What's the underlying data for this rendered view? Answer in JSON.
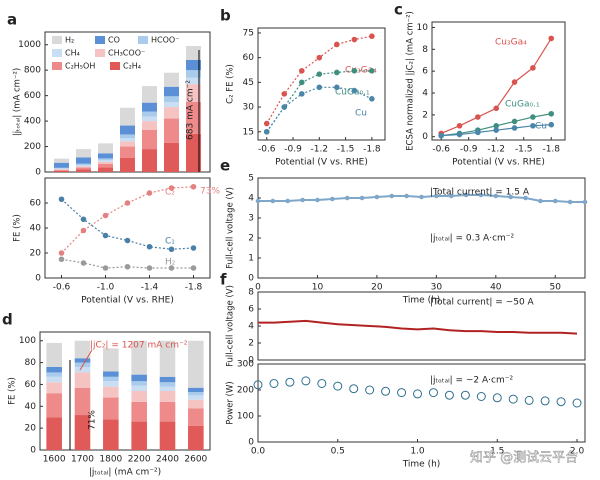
{
  "chart_data": [
    {
      "type": "stacked_bar",
      "label": "a",
      "ylabel": "|jₜₒₜₐₗ| (mA cm⁻²)",
      "x": [
        -0.6,
        -0.8,
        -1.0,
        -1.2,
        -1.4,
        -1.6,
        -1.8
      ],
      "xlim": [
        -0.45,
        -1.95
      ],
      "ylim": [
        0,
        1100
      ],
      "yticks": [
        0,
        200,
        400,
        600,
        800,
        1000
      ],
      "series": [
        {
          "name": "C₂H₄",
          "color": "#e05a5a",
          "values": [
            10,
            20,
            35,
            110,
            180,
            230,
            300
          ]
        },
        {
          "name": "C₂H₅OH",
          "color": "#ef8a8a",
          "values": [
            8,
            15,
            30,
            90,
            150,
            190,
            250
          ]
        },
        {
          "name": "CH₃COO⁻",
          "color": "#f6c3c3",
          "values": [
            4,
            8,
            15,
            40,
            70,
            90,
            140
          ]
        },
        {
          "name": "CH₄",
          "color": "#c9def2",
          "values": [
            6,
            10,
            12,
            25,
            35,
            40,
            50
          ]
        },
        {
          "name": "HCOO⁻",
          "color": "#a9cbec",
          "values": [
            5,
            12,
            15,
            30,
            40,
            45,
            60
          ]
        },
        {
          "name": "CO",
          "color": "#5b8fd6",
          "values": [
            40,
            50,
            40,
            70,
            70,
            75,
            80
          ]
        },
        {
          "name": "H₂",
          "color": "#d9d9d9",
          "values": [
            32,
            65,
            78,
            140,
            130,
            110,
            110
          ]
        }
      ],
      "annotations": [
        "683 mA cm⁻²"
      ]
    },
    {
      "type": "line",
      "ylabel": "FE (%)",
      "xlabel": "Potential (V vs. RHE)",
      "x": [
        -0.6,
        -0.8,
        -1.0,
        -1.2,
        -1.4,
        -1.6,
        -1.8
      ],
      "xlim": [
        -0.45,
        -1.95
      ],
      "xticks": [
        -0.6,
        {
          "value": -1.0,
          "label": "-1.0"
        },
        -1.4,
        -1.8
      ],
      "ylim": [
        0,
        80
      ],
      "yticks": [
        0,
        20,
        40,
        60
      ],
      "series": [
        {
          "name": "C₂",
          "color": "#e58080",
          "style": "dotted",
          "values": [
            20,
            38,
            50,
            60,
            68,
            72,
            73
          ]
        },
        {
          "name": "C₁",
          "color": "#4a7fa8",
          "style": "dotted",
          "values": [
            63,
            47,
            34,
            30,
            25,
            23,
            24
          ]
        },
        {
          "name": "H₂",
          "color": "#9a9a9a",
          "style": "dotted",
          "values": [
            15,
            12,
            8,
            9,
            8,
            8,
            8
          ]
        }
      ],
      "annotations": [
        "73%"
      ]
    },
    {
      "type": "line",
      "label": "b",
      "ylabel": "C₂ FE (%)",
      "xlabel": "Potential (V vs. RHE)",
      "x": [
        -0.6,
        -0.8,
        -1.0,
        -1.2,
        -1.4,
        -1.6,
        -1.8
      ],
      "xlim": [
        -0.5,
        -1.95
      ],
      "xticks": [
        -0.6,
        -0.9,
        -1.2,
        -1.5,
        -1.8
      ],
      "ylim": [
        10,
        78
      ],
      "yticks": [
        15,
        30,
        45,
        60,
        75
      ],
      "series": [
        {
          "name": "Cu₃Ga₄",
          "color": "#d9534f",
          "style": "dotted",
          "values": [
            20,
            38,
            52,
            60,
            68,
            71,
            73
          ]
        },
        {
          "name": "CuGa₀.₁",
          "color": "#3f8f7f",
          "style": "dotted",
          "values": [
            15,
            30,
            45,
            50,
            51,
            52,
            52
          ]
        },
        {
          "name": "Cu",
          "color": "#4a86a8",
          "style": "dotted",
          "values": [
            15,
            30,
            38,
            42,
            42,
            40,
            35
          ]
        }
      ]
    },
    {
      "type": "line",
      "label": "c",
      "ylabel": "ECSA normalized |jC₂| (mA cm⁻²)",
      "xlabel": "Potential (V vs. RHE)",
      "x": [
        -0.6,
        -0.8,
        -1.0,
        -1.2,
        -1.4,
        -1.6,
        -1.8
      ],
      "xlim": [
        -0.5,
        -1.95
      ],
      "xticks": [
        -0.6,
        -0.9,
        -1.2,
        -1.5,
        -1.8
      ],
      "ylim": [
        -0.3,
        10.5
      ],
      "yticks": [
        0,
        2,
        4,
        6,
        8,
        10
      ],
      "series": [
        {
          "name": "Cu₃Ga₄",
          "color": "#d9534f",
          "style": "solid",
          "values": [
            0.3,
            1.0,
            1.8,
            2.6,
            5.0,
            6.3,
            9.0
          ]
        },
        {
          "name": "CuGa₀.₁",
          "color": "#3f8f7f",
          "style": "solid",
          "values": [
            0.1,
            0.3,
            0.6,
            1.0,
            1.4,
            1.8,
            2.1
          ]
        },
        {
          "name": "Cu",
          "color": "#4a86a8",
          "style": "solid",
          "values": [
            0.1,
            0.2,
            0.4,
            0.6,
            0.8,
            1.0,
            1.1
          ]
        }
      ]
    },
    {
      "type": "stacked_bar",
      "label": "d",
      "ylabel": "FE (%)",
      "xlabel": "|jₜₒₜₐₗ| (mA cm⁻²)",
      "categories": [
        "1600",
        "1700",
        "1800",
        "2200",
        "2400",
        "2600"
      ],
      "ylim": [
        0,
        108
      ],
      "yticks": [
        0,
        20,
        40,
        60,
        80,
        100
      ],
      "series": [
        {
          "name": "C₂H₄",
          "color": "#e05a5a",
          "values": [
            30,
            32,
            28,
            26,
            26,
            22
          ]
        },
        {
          "name": "C₂H₅OH",
          "color": "#ef8a8a",
          "values": [
            22,
            25,
            20,
            18,
            18,
            16
          ]
        },
        {
          "name": "CH₃COO⁻",
          "color": "#f6c3c3",
          "values": [
            10,
            14,
            10,
            10,
            10,
            8
          ]
        },
        {
          "name": "CH₄",
          "color": "#c9def2",
          "values": [
            5,
            5,
            5,
            5,
            4,
            4
          ]
        },
        {
          "name": "HCOO⁻",
          "color": "#a9cbec",
          "values": [
            4,
            4,
            4,
            4,
            4,
            3
          ]
        },
        {
          "name": "CO",
          "color": "#5b8fd6",
          "values": [
            5,
            4,
            5,
            6,
            5,
            4
          ]
        },
        {
          "name": "H₂",
          "color": "#d9d9d9",
          "values": [
            22,
            16,
            21,
            31,
            33,
            43
          ]
        }
      ],
      "annotations": [
        "|jC₂| = 1207 mA cm⁻²",
        "71%"
      ]
    },
    {
      "type": "line",
      "label": "e",
      "ylabel": "Full-cell voltage (V)",
      "xlabel": "Time (h)",
      "x": [
        0,
        2.5,
        5,
        7.5,
        10,
        12.5,
        15,
        17.5,
        20,
        22.5,
        25,
        27.5,
        30,
        32.5,
        35,
        37.5,
        40,
        42.5,
        45,
        47.5,
        50,
        52.5,
        55
      ],
      "xlim": [
        0,
        55
      ],
      "xticks": [
        0,
        10,
        20,
        30,
        40,
        50
      ],
      "ylim": [
        0,
        5
      ],
      "yticks": [
        0,
        1,
        2,
        3,
        4,
        5
      ],
      "series": [
        {
          "name": "Voltage",
          "color": "#7fa7c9",
          "style": "solid",
          "values": [
            3.85,
            3.85,
            3.85,
            3.9,
            3.9,
            3.95,
            4.0,
            4.0,
            4.05,
            4.1,
            4.1,
            4.05,
            4.1,
            4.1,
            4.15,
            4.15,
            4.1,
            4.05,
            4.0,
            3.85,
            3.85,
            3.8,
            3.8
          ]
        }
      ],
      "annotations": [
        "|Total current| = 1.5 A",
        "|jₜₒₜₐₗ| = 0.3 A·cm⁻²"
      ]
    },
    {
      "type": "line",
      "label": "f",
      "ylabel": "Full-cell voltage (V)",
      "x": [
        0,
        0.1,
        0.2,
        0.3,
        0.4,
        0.5,
        0.6,
        0.7,
        0.8,
        0.9,
        1.0,
        1.1,
        1.2,
        1.3,
        1.4,
        1.5,
        1.6,
        1.7,
        1.8,
        1.9,
        2.0
      ],
      "xlim": [
        0,
        2.05
      ],
      "ylim": [
        0,
        8
      ],
      "yticks": [
        0,
        2,
        4,
        6,
        8
      ],
      "series": [
        {
          "name": "Voltage",
          "color": "#b22222",
          "style": "solid",
          "values": [
            4.4,
            4.4,
            4.5,
            4.6,
            4.4,
            4.2,
            4.1,
            4.0,
            3.9,
            3.7,
            3.6,
            3.7,
            3.5,
            3.4,
            3.4,
            3.3,
            3.3,
            3.2,
            3.2,
            3.2,
            3.1
          ]
        }
      ],
      "annotations": [
        "|Total current| = ~50 A"
      ]
    },
    {
      "type": "line",
      "ylabel": "Power (W)",
      "xlabel": "Time (h)",
      "x": [
        0,
        0.1,
        0.2,
        0.3,
        0.4,
        0.5,
        0.6,
        0.7,
        0.8,
        0.9,
        1.0,
        1.1,
        1.2,
        1.3,
        1.4,
        1.5,
        1.6,
        1.7,
        1.8,
        1.9,
        2.0
      ],
      "xlim": [
        0,
        2.05
      ],
      "xticks": [
        {
          "value": 0,
          "label": "0.0"
        },
        0.5,
        {
          "value": 1,
          "label": "1.0"
        },
        1.5,
        {
          "value": 2,
          "label": "2.0"
        }
      ],
      "ylim": [
        0,
        300
      ],
      "yticks": [
        0,
        100,
        200,
        300
      ],
      "series": [
        {
          "name": "Power",
          "color": "#2f6f8f",
          "style": "open",
          "values": [
            220,
            225,
            230,
            235,
            225,
            215,
            205,
            200,
            195,
            190,
            185,
            190,
            180,
            180,
            175,
            170,
            165,
            160,
            158,
            155,
            150
          ]
        }
      ],
      "annotations": [
        "|jₜₒₜₐₗ| = ~2 A·cm⁻²"
      ]
    }
  ],
  "watermark": "知乎 @测试云平台"
}
